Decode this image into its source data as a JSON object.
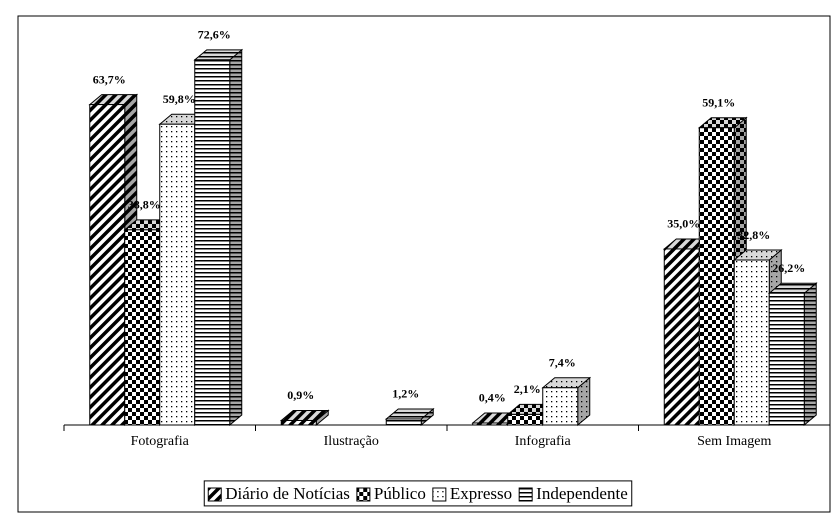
{
  "chart_data": {
    "type": "bar3d",
    "categories": [
      "Fotografia",
      "Ilustração",
      "Infografia",
      "Sem Imagem"
    ],
    "series": [
      {
        "name": "Diário de Notícias",
        "pattern": "diagonal",
        "color": "#000000",
        "values": [
          63.7,
          0.9,
          0.4,
          35.0
        ],
        "value_labels": [
          "63,7%",
          "0,9%",
          "0,4%",
          "35,0%"
        ]
      },
      {
        "name": "Público",
        "pattern": "checker",
        "color": "#000000",
        "values": [
          38.8,
          null,
          2.1,
          59.1
        ],
        "value_labels": [
          "38,8%",
          null,
          "2,1%",
          "59,1%"
        ]
      },
      {
        "name": "Expresso",
        "pattern": "dots",
        "color": "#000000",
        "values": [
          59.8,
          null,
          7.4,
          32.8
        ],
        "value_labels": [
          "59,8%",
          null,
          "7,4%",
          "32,8%"
        ]
      },
      {
        "name": "Independente",
        "pattern": "hlines",
        "color": "#000000",
        "values": [
          72.6,
          1.2,
          null,
          26.2
        ],
        "value_labels": [
          "72,6%",
          "1,2%",
          null,
          "26,2%"
        ]
      }
    ],
    "legend": "bottom"
  }
}
